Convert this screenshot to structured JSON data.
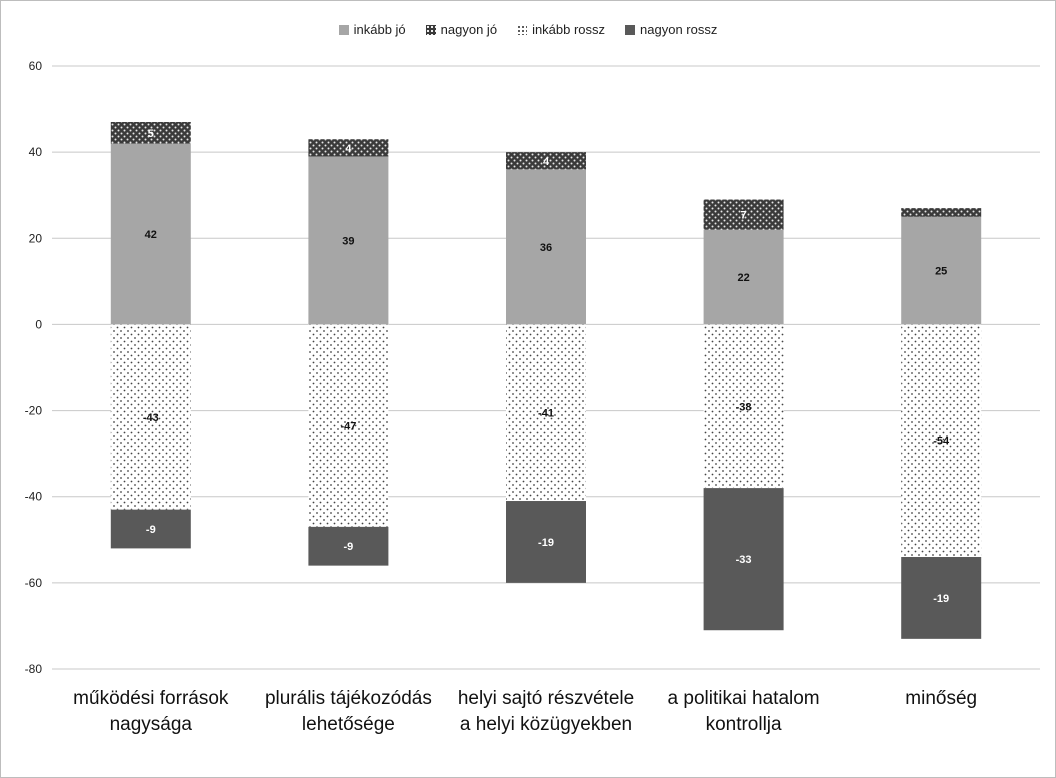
{
  "chart_data": {
    "type": "bar",
    "stacked": true,
    "categories": [
      "működési források nagysága",
      "plurális tájékozódás lehetősége",
      "helyi sajtó részvétele a helyi közügyekben",
      "a politikai hatalom kontrollja",
      "minőség"
    ],
    "series": [
      {
        "name": "inkább jó",
        "values": [
          42,
          39,
          36,
          22,
          25
        ],
        "color": "#a6a6a6",
        "pattern": "solid"
      },
      {
        "name": "nagyon jó",
        "values": [
          5,
          4,
          4,
          7,
          2
        ],
        "color": "#3a3a3a",
        "pattern": "dots-on-dark"
      },
      {
        "name": "inkább rossz",
        "values": [
          -43,
          -47,
          -41,
          -38,
          -54
        ],
        "color": "#ffffff",
        "pattern": "dots-on-light"
      },
      {
        "name": "nagyon rossz",
        "values": [
          -9,
          -9,
          -19,
          -33,
          -19
        ],
        "color": "#595959",
        "pattern": "solid"
      }
    ],
    "data_labels": [
      [
        "42",
        "39",
        "36",
        "22",
        "25"
      ],
      [
        "5",
        "4",
        "4",
        "7",
        ""
      ],
      [
        "-43",
        "-47",
        "-41",
        "-38",
        "-54"
      ],
      [
        "-9",
        "-9",
        "-19",
        "-33",
        "-19"
      ]
    ],
    "ylim": [
      -80,
      60
    ],
    "yticks": [
      "60",
      "40",
      "20",
      "0",
      "-20",
      "-40",
      "-60",
      "-80"
    ],
    "grid": true,
    "legend_position": "top",
    "title": "",
    "xlabel": "",
    "ylabel": ""
  }
}
